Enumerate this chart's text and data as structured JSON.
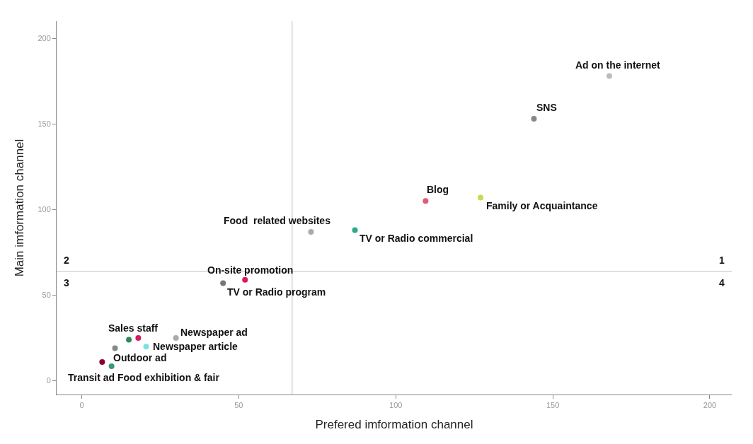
{
  "chart_data": {
    "type": "scatter",
    "xlabel": "Prefered imformation channel",
    "ylabel": "Main imformation channel",
    "x": [
      168,
      144,
      109.5,
      127,
      73,
      87,
      52,
      45,
      18,
      15,
      10.6,
      30,
      20.5,
      6.5,
      9.5
    ],
    "values": [
      178,
      153,
      105,
      107,
      87,
      88,
      59,
      57,
      25,
      24,
      19,
      25,
      20,
      11,
      8.5
    ],
    "colors": [
      "#bbbbbb",
      "#888888",
      "#e05a7a",
      "#c8d850",
      "#aaaaaa",
      "#2aaa88",
      "#d81b60",
      "#777777",
      "#d81b60",
      "#2e8b57",
      "#888888",
      "#aaaaaa",
      "#80e0e0",
      "#8b0030",
      "#3a9a70"
    ],
    "marker": "circle",
    "xlim": [
      -8,
      207
    ],
    "ylim": [
      -8,
      210
    ],
    "xticks": [
      0,
      50,
      100,
      150,
      200
    ],
    "yticks": [
      0,
      50,
      100,
      150,
      200
    ],
    "grid": false,
    "legend": false,
    "ref_lines": [
      {
        "axis": "x",
        "value": 67,
        "color": "#cccccc"
      },
      {
        "axis": "y",
        "value": 64,
        "color": "#cccccc"
      }
    ],
    "annotations": [
      {
        "text": "Ad on the internet",
        "x": 168,
        "y": 178
      },
      {
        "text": "SNS",
        "x": 144,
        "y": 153
      },
      {
        "text": "Blog",
        "x": 109.5,
        "y": 105
      },
      {
        "text": "Family or Acquaintance",
        "x": 127,
        "y": 107
      },
      {
        "text": "Food  related websites",
        "x": 73,
        "y": 87
      },
      {
        "text": "TV or Radio commercial",
        "x": 87,
        "y": 88
      },
      {
        "text": "On-site promotion",
        "x": 52,
        "y": 59
      },
      {
        "text": "TV or Radio program",
        "x": 45,
        "y": 57
      },
      {
        "text": "Sales staff",
        "x": 18,
        "y": 25
      },
      {
        "text": "Newspaper ad",
        "x": 30,
        "y": 25
      },
      {
        "text": "Newspaper article",
        "x": 20.5,
        "y": 20
      },
      {
        "text": "Outdoor ad",
        "x": 6.5,
        "y": 11
      },
      {
        "text": "Transit ad",
        "x": 9.5,
        "y": 8.5
      },
      {
        "text": "Food exhibition & fair",
        "x": 9.5,
        "y": 8.5
      },
      "1",
      "2",
      "3",
      "4"
    ]
  }
}
